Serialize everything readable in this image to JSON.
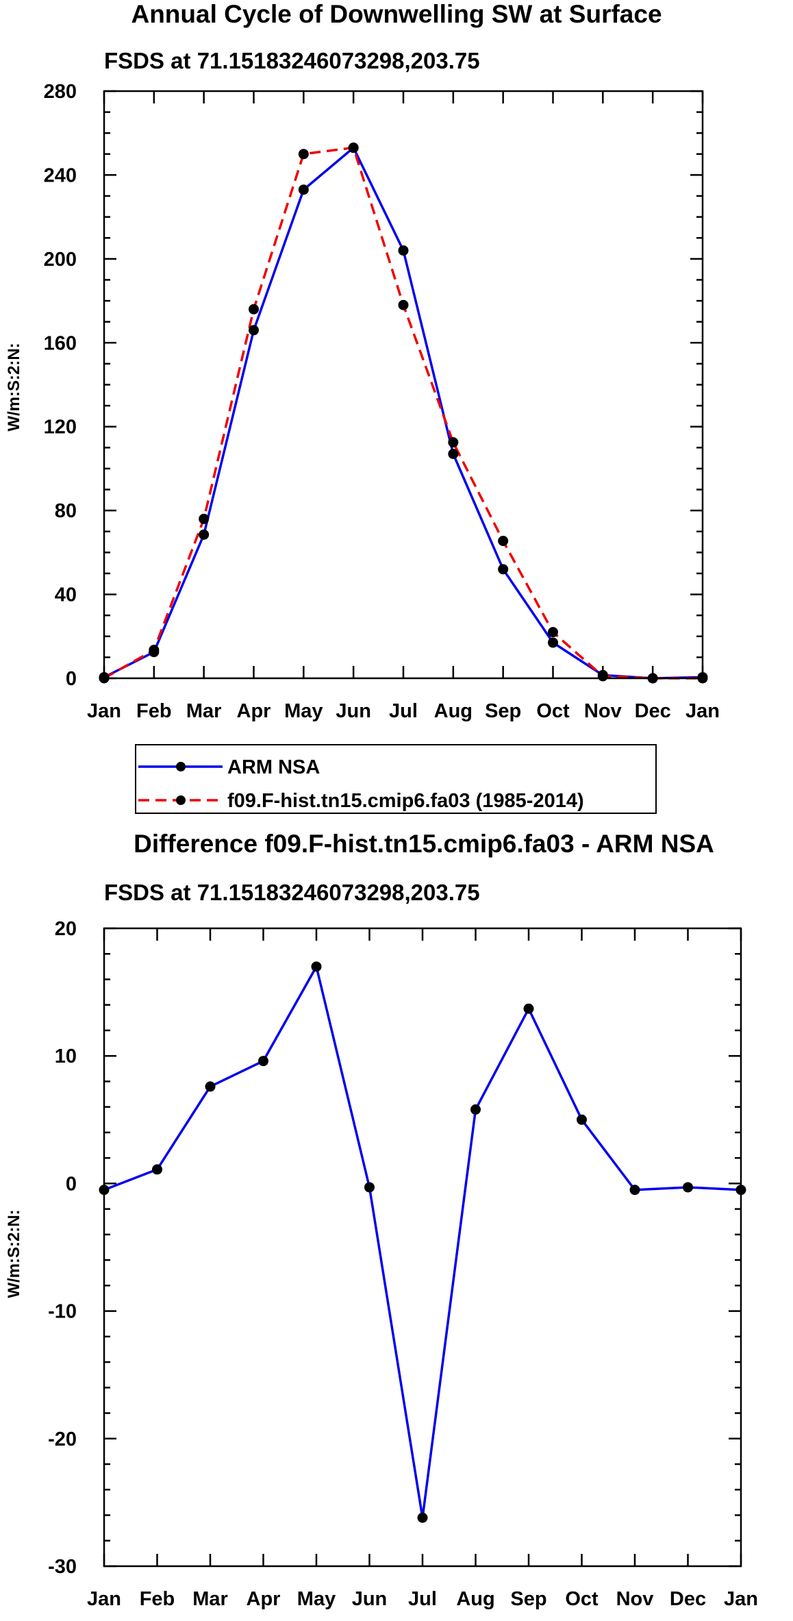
{
  "chart_data": [
    {
      "type": "line",
      "title": "Annual Cycle of Downwelling SW at Surface",
      "subtitle": "FSDS at 71.15183246073298,203.75",
      "xlabel": "",
      "ylabel": "W/m:S:2:N:",
      "categories": [
        "Jan",
        "Feb",
        "Mar",
        "Apr",
        "May",
        "Jun",
        "Jul",
        "Aug",
        "Sep",
        "Oct",
        "Nov",
        "Dec",
        "Jan"
      ],
      "ylim": [
        0,
        280
      ],
      "yticks": [
        "0",
        "40",
        "80",
        "120",
        "160",
        "200",
        "240",
        "280"
      ],
      "series": [
        {
          "name": "ARM NSA",
          "color": "#0000ee",
          "dash": "solid",
          "values": [
            0.5,
            12.5,
            68.5,
            166,
            233,
            253,
            204,
            107,
            52,
            17,
            1.5,
            0,
            0.5
          ]
        },
        {
          "name": "f09.F-hist.tn15.cmip6.fa03 (1985-2014)",
          "color": "#ee0000",
          "dash": "dashed",
          "values": [
            0,
            13.5,
            76,
            176,
            250,
            253,
            178,
            112.5,
            65.5,
            22,
            1,
            0,
            0
          ]
        }
      ],
      "legend": [
        "ARM NSA",
        "f09.F-hist.tn15.cmip6.fa03 (1985-2014)"
      ],
      "legend_position": "below"
    },
    {
      "type": "line",
      "title": "Difference f09.F-hist.tn15.cmip6.fa03 - ARM NSA",
      "subtitle": "FSDS at 71.15183246073298,203.75",
      "xlabel": "",
      "ylabel": "W/m:S:2:N:",
      "categories": [
        "Jan",
        "Feb",
        "Mar",
        "Apr",
        "May",
        "Jun",
        "Jul",
        "Aug",
        "Sep",
        "Oct",
        "Nov",
        "Dec",
        "Jan"
      ],
      "ylim": [
        -30,
        20
      ],
      "yticks": [
        "-30",
        "-20",
        "-10",
        "0",
        "10",
        "20"
      ],
      "series": [
        {
          "name": "Difference",
          "color": "#0000ee",
          "dash": "solid",
          "values": [
            -0.5,
            1.1,
            7.6,
            9.6,
            17,
            -0.3,
            -26.2,
            5.8,
            13.7,
            5,
            -0.5,
            -0.3,
            -0.5
          ]
        }
      ]
    }
  ]
}
